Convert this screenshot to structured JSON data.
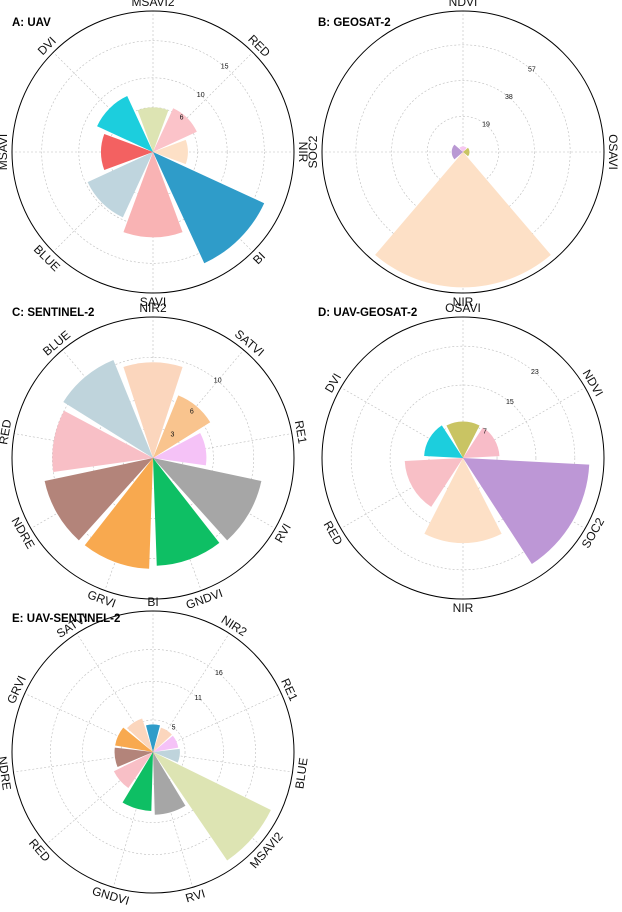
{
  "chart_data": [
    {
      "type": "polar_bar",
      "title": "A: UAV",
      "ticks": [
        6,
        10,
        15
      ],
      "max": 19,
      "bars": [
        {
          "label": "MSAVI2",
          "value": 6,
          "color": "#dde4b3"
        },
        {
          "label": "RED",
          "value": 6.5,
          "color": "#fbc3c9"
        },
        {
          "label": "NIR",
          "value": 4.7,
          "color": "#fde0c6"
        },
        {
          "label": "BI",
          "value": 16.5,
          "color": "#2f9cc9"
        },
        {
          "label": "SAVI",
          "value": 11.5,
          "color": "#f9b3b4"
        },
        {
          "label": "BLUE",
          "value": 9.7,
          "color": "#bfd5de"
        },
        {
          "label": "MSAVI",
          "value": 7,
          "color": "#f36161"
        },
        {
          "label": "DVI",
          "value": 8.3,
          "color": "#1ccedd"
        }
      ]
    },
    {
      "type": "polar_bar",
      "title": "B: GEOSAT-2",
      "ticks": [
        19,
        38,
        57
      ],
      "max": 75,
      "bars": [
        {
          "label": "NDVI",
          "value": 3,
          "color": "#f7c7f1"
        },
        {
          "label": "OSAVI",
          "value": 3.5,
          "color": "#c9c463"
        },
        {
          "label": "NIR",
          "value": 72,
          "color": "#fde0c6"
        },
        {
          "label": "SOC2",
          "value": 6,
          "color": "#b998d3"
        }
      ]
    },
    {
      "type": "polar_bar",
      "title": "C: SENTINEL-2",
      "ticks": [
        3,
        6,
        10
      ],
      "max": 14,
      "bars": [
        {
          "label": "NIR2",
          "value": 9.5,
          "color": "#fbd6bd"
        },
        {
          "label": "SATVI",
          "value": 6.7,
          "color": "#f9c48e"
        },
        {
          "label": "RE1",
          "value": 5.3,
          "color": "#f5c2f7"
        },
        {
          "label": "RVI",
          "value": 11,
          "color": "#a6a6a6"
        },
        {
          "label": "GNDVI",
          "value": 10.7,
          "color": "#0ebf64"
        },
        {
          "label": "GRVI",
          "value": 11,
          "color": "#f8a94f"
        },
        {
          "label": "NDRE",
          "value": 11,
          "color": "#b3847a"
        },
        {
          "label": "RED",
          "value": 10,
          "color": "#f8bfc6"
        },
        {
          "label": "BLUE",
          "value": 10.5,
          "color": "#bfd4dc"
        }
      ]
    },
    {
      "type": "polar_bar",
      "title": "D: UAV-GEOSAT-2",
      "ticks": [
        7,
        15,
        23
      ],
      "max": 29,
      "bars": [
        {
          "label": "OSAVI",
          "value": 7.5,
          "color": "#c9c463"
        },
        {
          "label": "NDVI",
          "value": 7.5,
          "color": "#f8bcc8"
        },
        {
          "label": "SOC2",
          "value": 26,
          "color": "#bd97d6"
        },
        {
          "label": "NIR",
          "value": 17.5,
          "color": "#fde0c6"
        },
        {
          "label": "RED",
          "value": 12,
          "color": "#f8bfc6"
        },
        {
          "label": "DVI",
          "value": 8,
          "color": "#1ccedd"
        }
      ]
    },
    {
      "type": "polar_bar",
      "title": "E: UAV-SENTINEL-2",
      "ticks": [
        5,
        11,
        16
      ],
      "max": 22,
      "bars": [
        {
          "label": "BI",
          "value": 4.3,
          "color": "#2f9cc9"
        },
        {
          "label": "NIR2",
          "value": 4,
          "color": "#fbd6bd"
        },
        {
          "label": "RE1",
          "value": 4,
          "color": "#f5c2f7"
        },
        {
          "label": "BLUE",
          "value": 4.2,
          "color": "#bfd4dc"
        },
        {
          "label": "MSAVI2",
          "value": 20.5,
          "color": "#dde4b3"
        },
        {
          "label": "RVI",
          "value": 9.8,
          "color": "#a6a6a6"
        },
        {
          "label": "GNDVI",
          "value": 9.2,
          "color": "#0ebf64"
        },
        {
          "label": "RED",
          "value": 6.8,
          "color": "#f8bfc6"
        },
        {
          "label": "NDRE",
          "value": 6,
          "color": "#b3847a"
        },
        {
          "label": "GRVI",
          "value": 6,
          "color": "#f8a94f"
        },
        {
          "label": "SATVI",
          "value": 5.5,
          "color": "#fbd6bd"
        }
      ]
    }
  ]
}
